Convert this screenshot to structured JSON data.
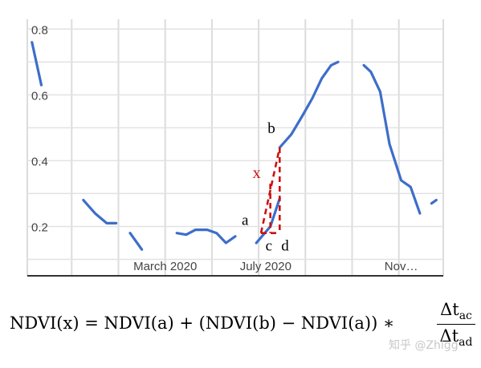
{
  "chart_data": {
    "type": "line",
    "xlabel": "",
    "ylabel": "",
    "x_tick_labels": [
      "March 2020",
      "July 2020",
      "Nov…"
    ],
    "y_tick_labels": [
      "0.8",
      "0.6",
      "0.4",
      "0.2"
    ],
    "y_ticks": [
      0.8,
      0.6,
      0.4,
      0.2
    ],
    "ylim": [
      0.05,
      0.83
    ],
    "x_period": "2020 (approx. weekly composites)",
    "grid": true,
    "line_color": "#3d6ec9",
    "series": [
      {
        "segments": [
          [
            [
              -0.2,
              0.76
            ],
            [
              0.2,
              0.63
            ]
          ],
          [
            [
              2.0,
              0.28
            ],
            [
              2.5,
              0.24
            ],
            [
              3.0,
              0.21
            ],
            [
              3.4,
              0.21
            ]
          ],
          [
            [
              4.0,
              0.18
            ],
            [
              4.5,
              0.13
            ]
          ],
          [
            [
              6.0,
              0.18
            ],
            [
              6.4,
              0.175
            ],
            [
              6.8,
              0.19
            ],
            [
              7.3,
              0.19
            ],
            [
              7.7,
              0.18
            ],
            [
              8.1,
              0.15
            ],
            [
              8.5,
              0.17
            ]
          ],
          [
            [
              9.4,
              0.15
            ],
            [
              10.0,
              0.2
            ],
            [
              10.4,
              0.285
            ]
          ],
          [
            [
              10.4,
              0.44
            ],
            [
              10.9,
              0.48
            ],
            [
              11.4,
              0.54
            ],
            [
              11.8,
              0.59
            ],
            [
              12.2,
              0.65
            ],
            [
              12.6,
              0.69
            ],
            [
              12.9,
              0.7
            ]
          ],
          [
            [
              14.0,
              0.69
            ],
            [
              14.3,
              0.67
            ],
            [
              14.7,
              0.61
            ],
            [
              15.1,
              0.45
            ],
            [
              15.6,
              0.34
            ],
            [
              16.0,
              0.32
            ],
            [
              16.4,
              0.24
            ]
          ],
          [
            [
              16.9,
              0.27
            ],
            [
              17.1,
              0.28
            ]
          ]
        ]
      }
    ],
    "interpolation_guide": {
      "color": "#cc1111",
      "a": [
        9.6,
        0.18
      ],
      "b": [
        10.4,
        0.44
      ],
      "c": [
        10.0,
        0.18
      ],
      "d": [
        10.4,
        0.18
      ],
      "x": [
        10.0,
        0.33
      ],
      "labels": {
        "a": "a",
        "b": "b",
        "c": "c",
        "d": "d",
        "x": "x"
      }
    }
  },
  "formula": {
    "lhs": "NDVI(x) = NDVI(a) + (NDVI(b) − NDVI(a)) ∗",
    "numerator": "Δt",
    "numerator_sub": "ac",
    "denominator": "Δt",
    "denominator_sub": "ad"
  },
  "watermark": "知乎 @Zhigg"
}
